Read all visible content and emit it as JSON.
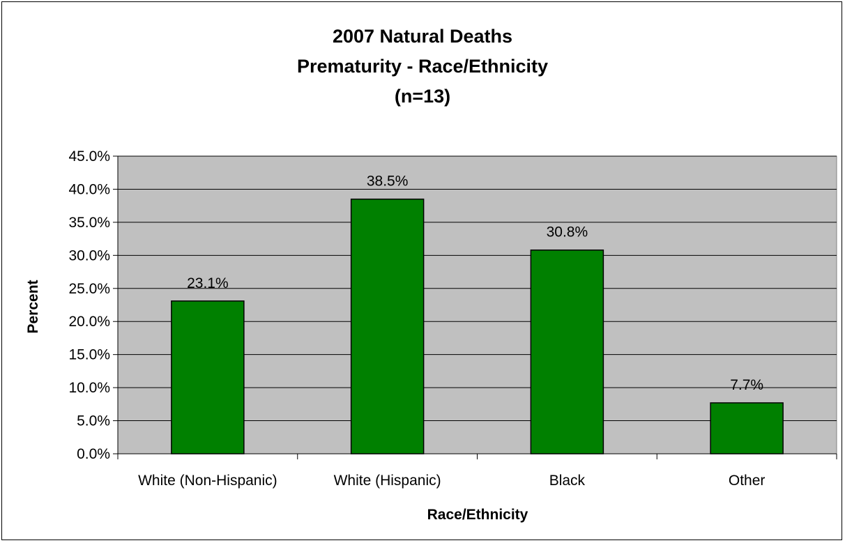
{
  "chart_data": {
    "type": "bar",
    "title": [
      "2007 Natural Deaths",
      "Prematurity - Race/Ethnicity",
      "(n=13)"
    ],
    "xlabel": "Race/Ethnicity",
    "ylabel": "Percent",
    "categories": [
      "White (Non-Hispanic)",
      "White (Hispanic)",
      "Black",
      "Other"
    ],
    "values": [
      23.1,
      38.5,
      30.8,
      7.7
    ],
    "data_labels": [
      "23.1%",
      "38.5%",
      "30.8%",
      "7.7%"
    ],
    "ylim": [
      0,
      45
    ],
    "yticks": [
      "0.0%",
      "5.0%",
      "10.0%",
      "15.0%",
      "20.0%",
      "25.0%",
      "30.0%",
      "35.0%",
      "40.0%",
      "45.0%"
    ],
    "grid": true,
    "legend": "none",
    "colors": {
      "bar": "#008000",
      "plot_bg": "#c0c0c0",
      "gridline": "#000000"
    }
  }
}
